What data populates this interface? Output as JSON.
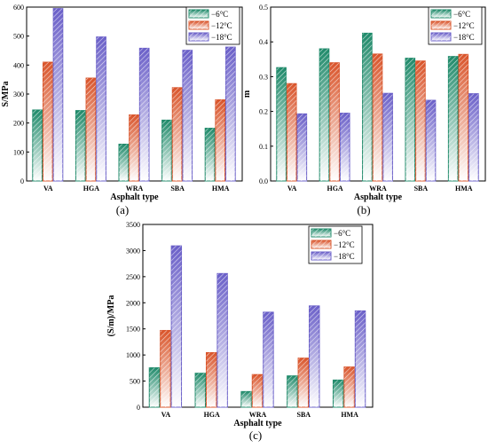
{
  "chart_data": [
    {
      "type": "bar",
      "panel": "(a)",
      "categories": [
        "VA",
        "HGA",
        "WRA",
        "SBA",
        "HMA"
      ],
      "series": [
        {
          "name": "−6°C",
          "values": [
            245,
            243,
            127,
            210,
            182
          ]
        },
        {
          "name": "−12°C",
          "values": [
            410,
            355,
            228,
            322,
            280
          ]
        },
        {
          "name": "−18°C",
          "values": [
            595,
            497,
            458,
            451,
            462
          ]
        }
      ],
      "xlabel": "Asphalt type",
      "ylabel": "S/MPa",
      "ylim": [
        0,
        600
      ],
      "yticks": [
        "0",
        "100",
        "200",
        "300",
        "400",
        "500",
        "600"
      ],
      "legend": "top-right",
      "grid": false
    },
    {
      "type": "bar",
      "panel": "(b)",
      "categories": [
        "VA",
        "HGA",
        "WRA",
        "SBA",
        "HMA"
      ],
      "series": [
        {
          "name": "−6°C",
          "values": [
            0.326,
            0.38,
            0.425,
            0.353,
            0.358
          ]
        },
        {
          "name": "−12°C",
          "values": [
            0.28,
            0.34,
            0.365,
            0.345,
            0.364
          ]
        },
        {
          "name": "−18°C",
          "values": [
            0.193,
            0.195,
            0.252,
            0.232,
            0.251
          ]
        }
      ],
      "xlabel": "Asphalt type",
      "ylabel": "m",
      "ylim": [
        0,
        0.5
      ],
      "yticks": [
        "0.0",
        "0.1",
        "0.2",
        "0.3",
        "0.4",
        "0.5"
      ],
      "legend": "top-right",
      "grid": false
    },
    {
      "type": "bar",
      "panel": "(c)",
      "categories": [
        "VA",
        "HGA",
        "WRA",
        "SBA",
        "HMA"
      ],
      "series": [
        {
          "name": "−6°C",
          "values": [
            755,
            650,
            300,
            600,
            520
          ]
        },
        {
          "name": "−12°C",
          "values": [
            1470,
            1045,
            625,
            940,
            770
          ]
        },
        {
          "name": "−18°C",
          "values": [
            3090,
            2560,
            1820,
            1940,
            1845
          ]
        }
      ],
      "xlabel": "Asphalt type",
      "ylabel": "(S/m)/MPa",
      "ylim": [
        0,
        3500
      ],
      "yticks": [
        "0",
        "500",
        "1000",
        "1500",
        "2000",
        "2500",
        "3000",
        "3500"
      ],
      "legend": "top-right",
      "grid": false
    }
  ],
  "colors": {
    "series": [
      "#1f8a6a",
      "#d9542a",
      "#6a5fc8"
    ],
    "axis": "#000000"
  }
}
